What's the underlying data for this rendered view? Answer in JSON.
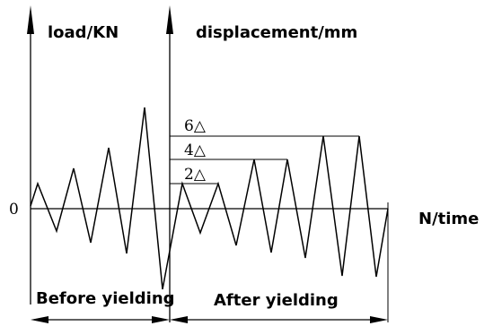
{
  "labels": {
    "left_axis": "load/KN",
    "right_axis": "displacement/mm",
    "x_axis": "N/time",
    "zero": "0",
    "before": "Before yielding",
    "after": "After yielding"
  },
  "amplitude_marks": [
    "6△",
    "4△",
    "2△"
  ],
  "diagram": {
    "description_type": "cyclic loading protocol",
    "phases": [
      "Before yielding",
      "After yielding"
    ]
  }
}
